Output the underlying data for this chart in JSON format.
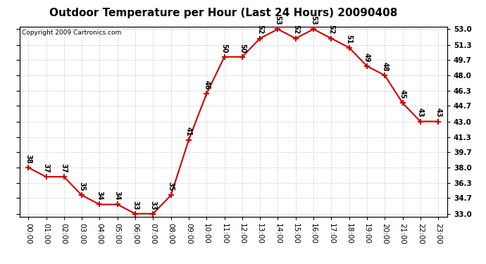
{
  "title": "Outdoor Temperature per Hour (Last 24 Hours) 20090408",
  "copyright": "Copyright 2009 Cartronics.com",
  "hours": [
    "00:00",
    "01:00",
    "02:00",
    "03:00",
    "04:00",
    "05:00",
    "06:00",
    "07:00",
    "08:00",
    "09:00",
    "10:00",
    "11:00",
    "12:00",
    "13:00",
    "14:00",
    "15:00",
    "16:00",
    "17:00",
    "18:00",
    "19:00",
    "20:00",
    "21:00",
    "22:00",
    "23:00"
  ],
  "temps": [
    38,
    37,
    37,
    35,
    34,
    34,
    33,
    33,
    35,
    41,
    46,
    50,
    50,
    52,
    53,
    52,
    53,
    52,
    51,
    49,
    48,
    45,
    43,
    43
  ],
  "line_color": "#cc0000",
  "marker_color": "#cc0000",
  "bg_color": "#ffffff",
  "plot_bg_color": "#ffffff",
  "grid_color": "#cccccc",
  "title_fontsize": 11,
  "tick_fontsize": 7.5,
  "annotation_fontsize": 7,
  "ylim_min": 33.0,
  "ylim_max": 53.0,
  "yticks": [
    33.0,
    34.7,
    36.3,
    38.0,
    39.7,
    41.3,
    43.0,
    44.7,
    46.3,
    48.0,
    49.7,
    51.3,
    53.0
  ]
}
